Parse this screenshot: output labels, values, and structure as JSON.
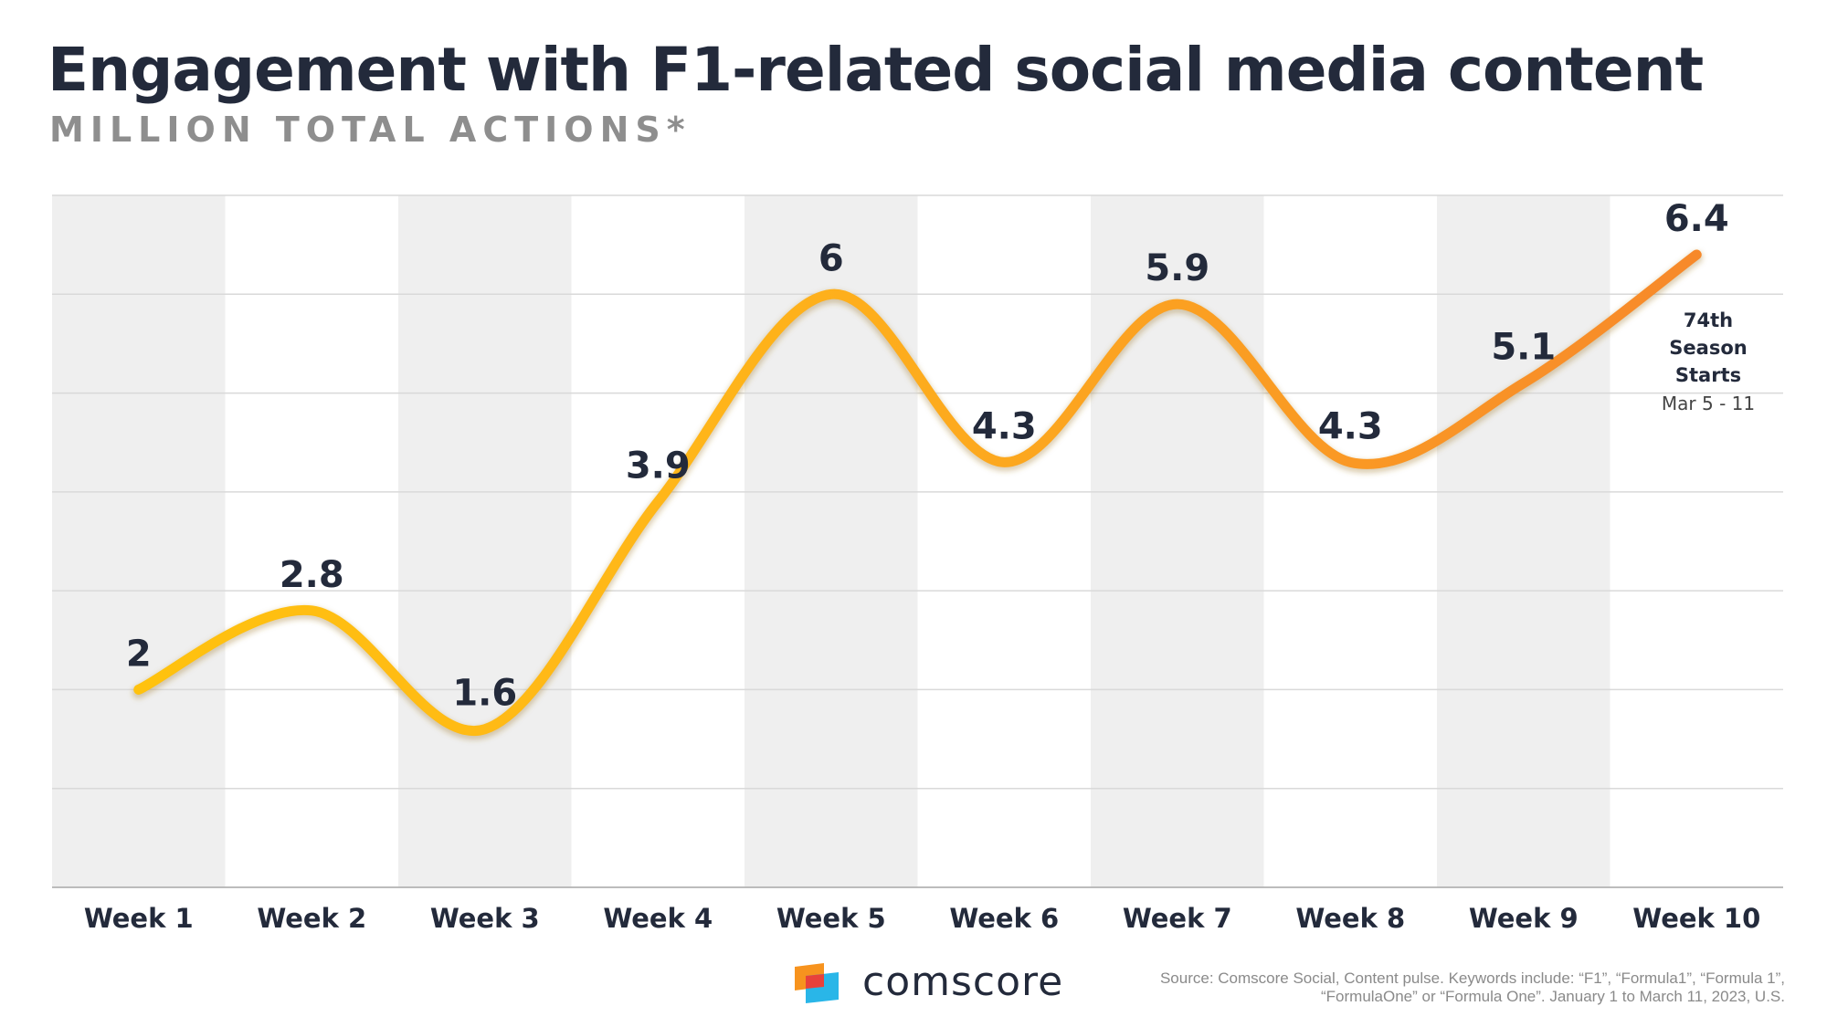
{
  "title": "Engagement with F1-related social media content",
  "subtitle": "MILLION TOTAL ACTIONS*",
  "annotation": {
    "title": "74th Season Starts",
    "sub": "Mar 5 - 11"
  },
  "logo_text": "comscore",
  "source": "Source: Comscore Social, Content pulse. Keywords include: “F1”, “Formula1”, “Formula 1”, “FormulaOne” or “Formula One”. January 1 to March 11, 2023, U.S.",
  "colors": {
    "line_start": "#ffc20e",
    "line_end": "#f7892a",
    "band": "#efefef",
    "grid": "#d9d9d9",
    "text": "#232a3b"
  },
  "chart_data": {
    "type": "line",
    "categories": [
      "Week 1",
      "Week 2",
      "Week 3",
      "Week 4",
      "Week 5",
      "Week 6",
      "Week 7",
      "Week 8",
      "Week 9",
      "Week 10"
    ],
    "values": [
      2,
      2.8,
      1.6,
      3.9,
      6,
      4.3,
      5.9,
      4.3,
      5.1,
      6.4
    ],
    "labels": [
      "2",
      "2.8",
      "1.6",
      "3.9",
      "6",
      "4.3",
      "5.9",
      "4.3",
      "5.1",
      "6.4"
    ],
    "ylim": [
      0,
      7
    ],
    "grid": true,
    "xlabel": "",
    "ylabel": ""
  }
}
